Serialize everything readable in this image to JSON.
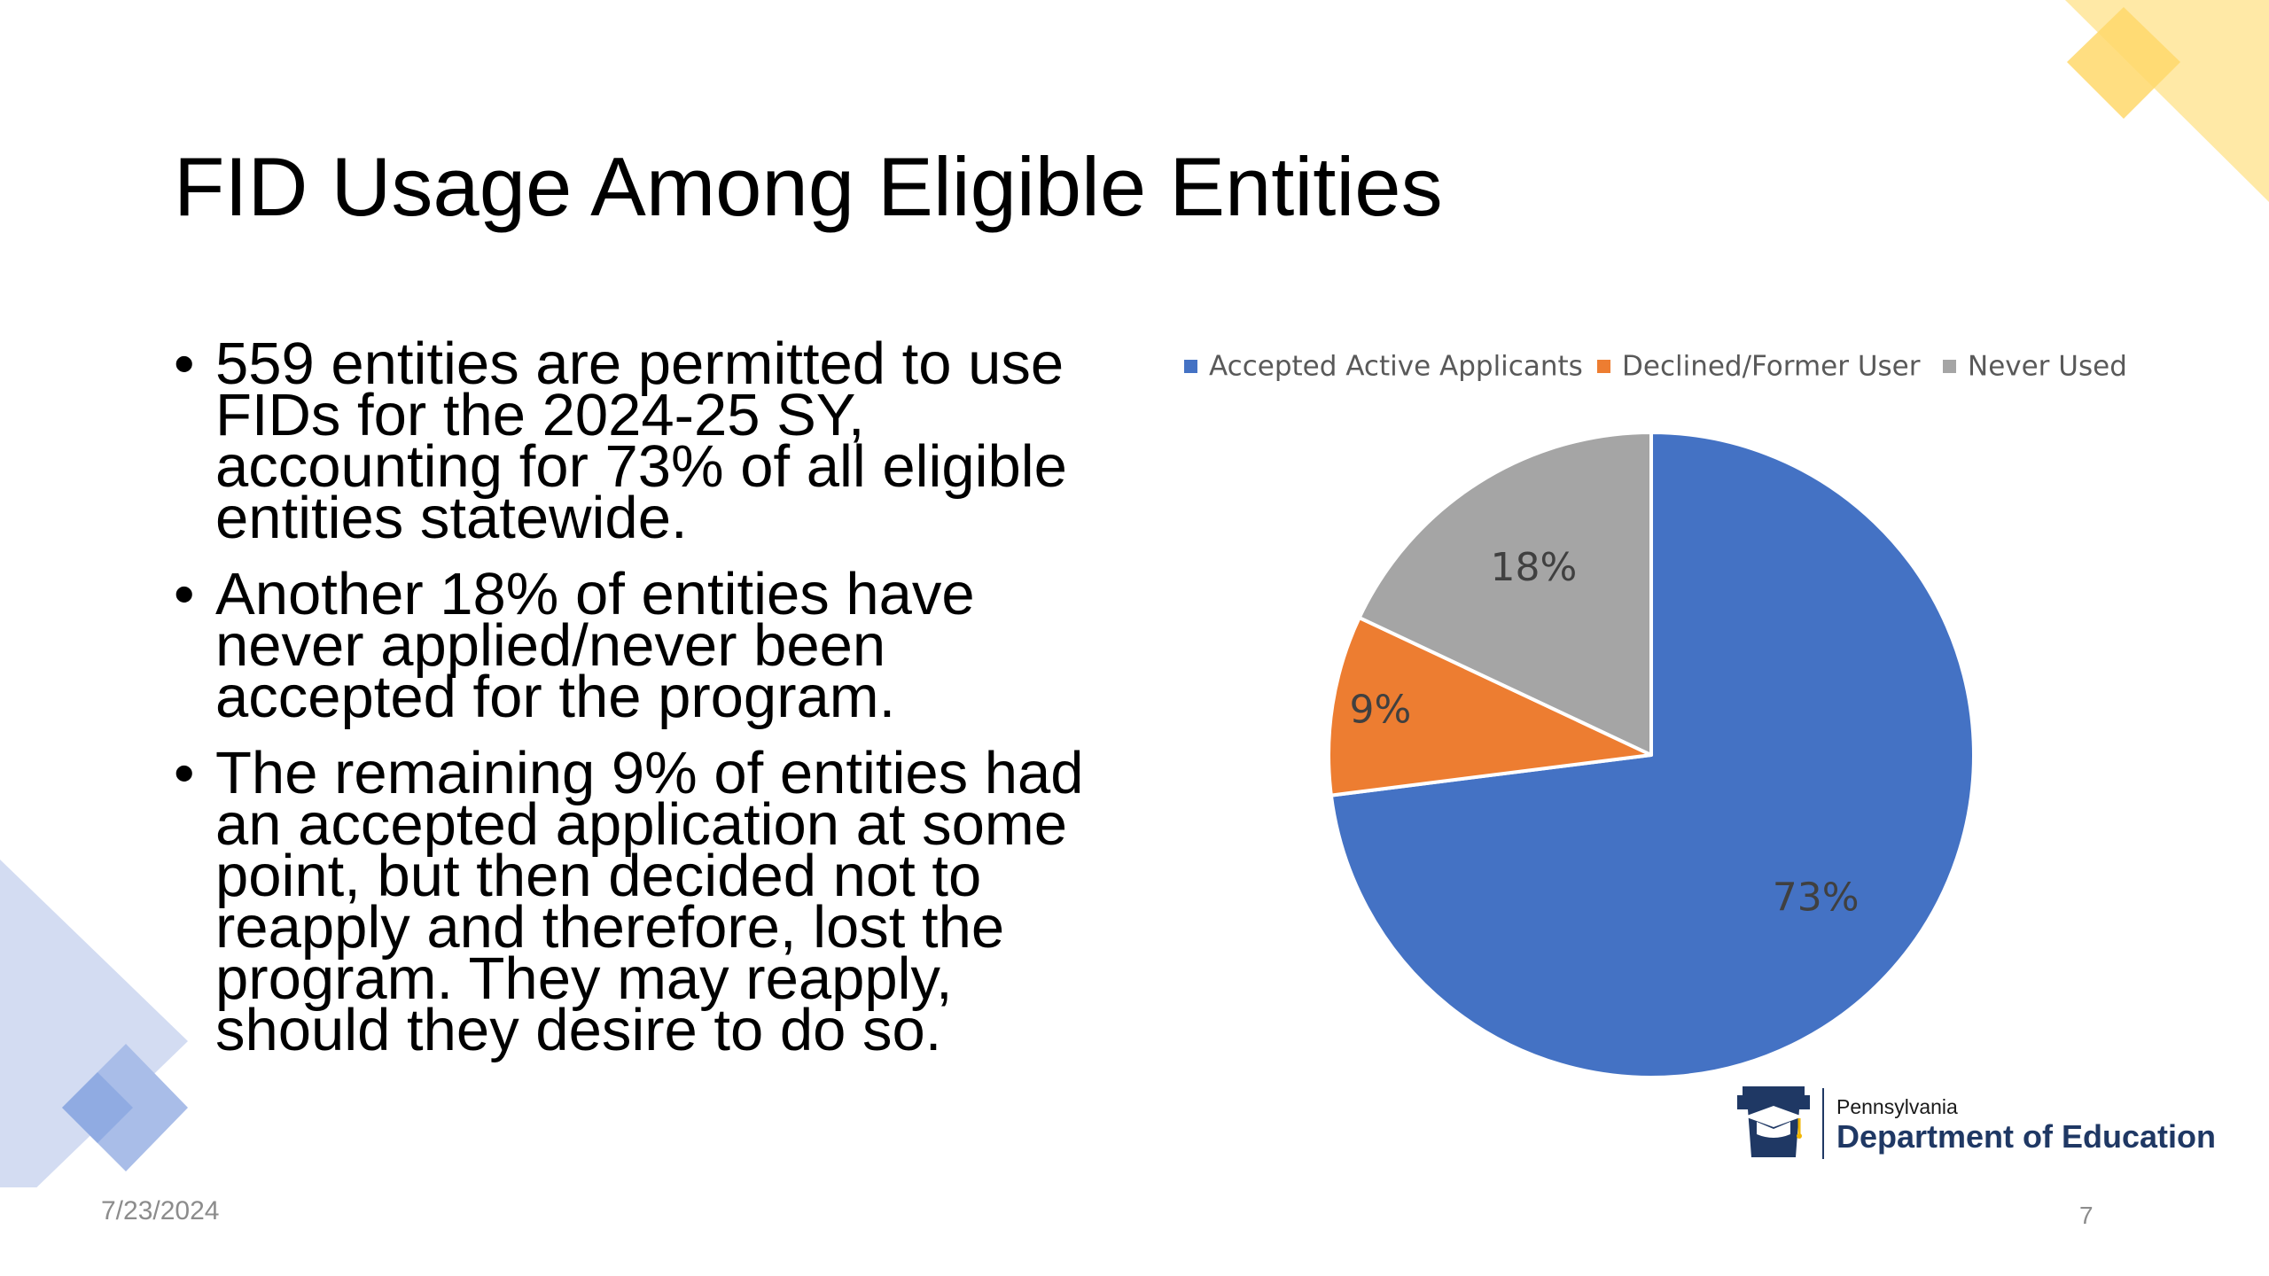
{
  "slide": {
    "title": "FID Usage Among Eligible Entities",
    "bullets": [
      "559 entities are permitted to use FIDs for the 2024-25 SY, accounting for 73% of all eligible entities statewide.",
      "Another 18% of entities have never applied/never been accepted for the program.",
      "The remaining 9% of entities had an accepted application at some point, but then decided not to reapply and therefore, lost the program. They may reapply, should they desire to do so."
    ],
    "bullet_glyph": "•",
    "date": "7/23/2024",
    "page_number": "7"
  },
  "logo": {
    "small_text": "Pennsylvania",
    "big_text": "Department of Education",
    "colors": {
      "navy": "#1f3864",
      "gold": "#f2b600"
    }
  },
  "decorations": {
    "corner_top_right_colors": [
      "#ffe9a6",
      "#ffd86b"
    ],
    "corner_bottom_left_colors": [
      "#d3dcf2",
      "#a9bde8",
      "#8aa6e0"
    ]
  },
  "chart_data": {
    "type": "pie",
    "title": "",
    "legend_position": "top",
    "slices": [
      {
        "label": "Accepted Active Applicants",
        "value": 73,
        "data_label": "73%",
        "color": "#4472c4"
      },
      {
        "label": "Declined/Former User",
        "value": 9,
        "data_label": "9%",
        "color": "#ed7d31"
      },
      {
        "label": "Never Used",
        "value": 18,
        "data_label": "18%",
        "color": "#a5a5a5"
      }
    ],
    "start_angle": "12 o'clock",
    "direction": "clockwise",
    "label_color": "#404040"
  }
}
